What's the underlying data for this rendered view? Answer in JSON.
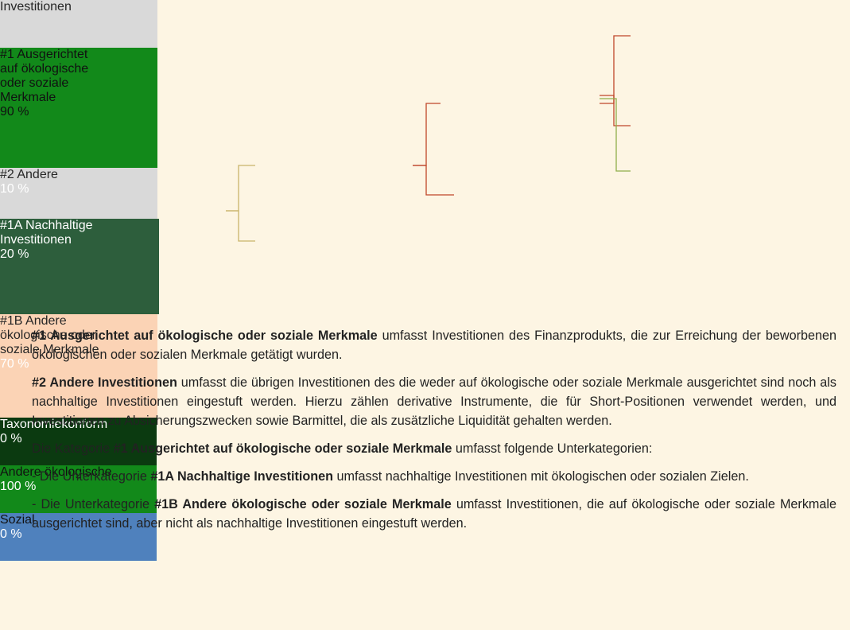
{
  "nodes": [
    {
      "lines": [
        "Investitionen"
      ],
      "value": null,
      "color": "#d9d9d9",
      "text_color": "#262626",
      "value_color": "#ffffff"
    },
    {
      "lines": [
        "#1 Ausgerichtet",
        "auf ökologische",
        "oder soziale",
        "Merkmale"
      ],
      "value": "90 %",
      "color": "#12891a",
      "text_color": "#111111",
      "value_color": "#111111"
    },
    {
      "lines": [
        "#2 Andere"
      ],
      "value": "10 %",
      "color": "#d9d9d9",
      "text_color": "#262626",
      "value_color": "#ffffff"
    },
    {
      "lines": [
        "#1A Nachhaltige",
        "Investitionen"
      ],
      "value": "20 %",
      "color": "#2d5e3c",
      "text_color": "#ffffff",
      "value_color": "#ffffff"
    },
    {
      "lines": [
        "#1B Andere",
        "ökologische oder",
        "soziale Merkmale"
      ],
      "value": "70 %",
      "color": "#fbd3b5",
      "text_color": "#262626",
      "value_color": "#ffffff"
    },
    {
      "lines": [
        "Taxonomiekonform"
      ],
      "value": "0 %",
      "color": "#0b3a10",
      "text_color": "#ffffff",
      "value_color": "#ffffff"
    },
    {
      "lines": [
        "Andere ökologische"
      ],
      "value": "100 %",
      "color": "#12891a",
      "text_color": "#111111",
      "value_color": "#ffffff"
    },
    {
      "lines": [
        "Sozial"
      ],
      "value": "0 %",
      "color": "#4f81bd",
      "text_color": "#111111",
      "value_color": "#ffffff"
    }
  ],
  "paragraphs": [
    [
      {
        "text": "#1 Ausgerichtet auf ökologische oder soziale Merkmale",
        "bold": true
      },
      {
        "text": " umfasst Investitionen des Finanzprodukts, die zur Erreichung der beworbenen ökologischen oder sozialen Merkmale getätigt wurden.",
        "bold": false
      }
    ],
    [
      {
        "text": "#2 Andere Investitionen",
        "bold": true
      },
      {
        "text": " umfasst die übrigen Investitionen des die weder auf ökologische oder soziale Merkmale ausgerichtet sind noch als nachhaltige Investitionen eingestuft werden. Hierzu zählen derivative Instrumente, die für Short-Positionen verwendet werden, und Investitionen zu Absicherungszwecken sowie Barmittel, die als zusätzliche Liquidität gehalten werden.",
        "bold": false
      }
    ],
    [
      {
        "text": "Die Kategorie ",
        "bold": false
      },
      {
        "text": "#1 Ausgerichtet auf ökologische oder soziale Merkmale",
        "bold": true
      },
      {
        "text": " umfasst folgende Unterkategorien:",
        "bold": false
      }
    ],
    [
      {
        "text": "- Die Unterkategorie ",
        "bold": false
      },
      {
        "text": "#1A Nachhaltige Investitionen",
        "bold": true
      },
      {
        "text": " umfasst nachhaltige Investitionen mit ökologischen oder sozialen Zielen.",
        "bold": false
      }
    ],
    [
      {
        "text": "- Die Unterkategorie ",
        "bold": false
      },
      {
        "text": "#1B Andere ökologische oder soziale Merkmale",
        "bold": true
      },
      {
        "text": " umfasst Investitionen, die auf ökologische oder soziale Merkmale ausgerichtet sind, aber nicht als nachhaltige Investitionen eingestuft werden.",
        "bold": false
      }
    ]
  ]
}
